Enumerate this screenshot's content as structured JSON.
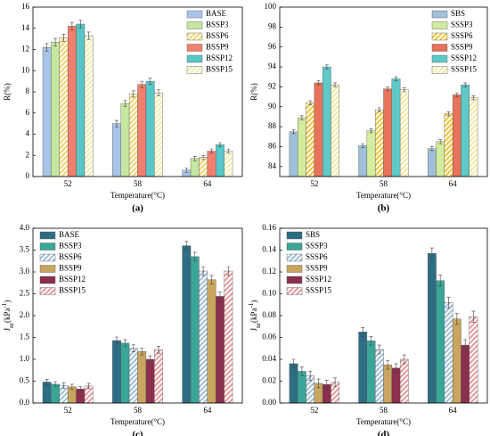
{
  "chart_data": [
    {
      "type": "bar",
      "caption": "(a)",
      "y_label": "R(%)",
      "x_label": "Temperature(°C)",
      "legend": "upper right",
      "categories": [
        "52",
        "58",
        "64"
      ],
      "ylim": [
        0,
        16
      ],
      "yticks": [
        0,
        2,
        4,
        6,
        8,
        10,
        12,
        14,
        16
      ],
      "series": [
        {
          "name": "BASE",
          "color": "#a9c4e6",
          "values": [
            12.2,
            5.0,
            0.6
          ],
          "errors": [
            0.35,
            0.3,
            0.2
          ]
        },
        {
          "name": "BSSP3",
          "color": "#c5e8a0",
          "values": [
            12.7,
            6.9,
            1.7
          ],
          "errors": [
            0.35,
            0.3,
            0.2
          ]
        },
        {
          "name": "BSSP6",
          "color": "#f5d36b",
          "hatch": true,
          "values": [
            13.1,
            7.8,
            1.8
          ],
          "errors": [
            0.35,
            0.3,
            0.2
          ]
        },
        {
          "name": "BSSP9",
          "color": "#f07f6d",
          "values": [
            14.2,
            8.7,
            2.4
          ],
          "errors": [
            0.35,
            0.3,
            0.2
          ]
        },
        {
          "name": "BSSP12",
          "color": "#57c7c7",
          "values": [
            14.4,
            9.0,
            3.0
          ],
          "errors": [
            0.35,
            0.3,
            0.2
          ]
        },
        {
          "name": "BSSP15",
          "color": "#f2ecb0",
          "hatch": true,
          "values": [
            13.3,
            7.9,
            2.4
          ],
          "errors": [
            0.35,
            0.3,
            0.2
          ]
        }
      ]
    },
    {
      "type": "bar",
      "caption": "(b)",
      "y_label": "R(%)",
      "x_label": "Temperature(°C)",
      "legend": "upper right",
      "categories": [
        "52",
        "58",
        "64"
      ],
      "ylim": [
        83,
        100
      ],
      "yticks": [
        84,
        86,
        88,
        90,
        92,
        94,
        96,
        98,
        100
      ],
      "series": [
        {
          "name": "SBS",
          "color": "#9fc0d8",
          "values": [
            87.5,
            86.1,
            85.8
          ],
          "errors": [
            0.2,
            0.2,
            0.2
          ]
        },
        {
          "name": "SSSP3",
          "color": "#d4ec9e",
          "values": [
            88.9,
            87.6,
            86.5
          ],
          "errors": [
            0.2,
            0.2,
            0.2
          ]
        },
        {
          "name": "SSSP6",
          "color": "#f1c232",
          "hatch": true,
          "values": [
            90.4,
            89.7,
            89.3
          ],
          "errors": [
            0.2,
            0.2,
            0.2
          ]
        },
        {
          "name": "SSSP9",
          "color": "#e8735a",
          "values": [
            92.4,
            91.8,
            91.2
          ],
          "errors": [
            0.2,
            0.2,
            0.2
          ]
        },
        {
          "name": "SSSP12",
          "color": "#5ec9c8",
          "values": [
            94.0,
            92.8,
            92.2
          ],
          "errors": [
            0.2,
            0.2,
            0.2
          ]
        },
        {
          "name": "SSSP15",
          "color": "#f3e9a0",
          "hatch": true,
          "values": [
            92.2,
            91.7,
            90.9
          ],
          "errors": [
            0.2,
            0.2,
            0.2
          ]
        }
      ]
    },
    {
      "type": "bar",
      "caption": "(c)",
      "y_label": [
        "J",
        "nr",
        "(kPa",
        "-1",
        ")"
      ],
      "x_label": "Temperature(°C)",
      "legend": "upper left",
      "categories": [
        "52",
        "58",
        "64"
      ],
      "ylim": [
        0,
        4
      ],
      "yticks": [
        {
          "value": 0,
          "label": "0.0"
        },
        0.5,
        {
          "value": 1,
          "label": "1.0"
        },
        1.5,
        {
          "value": 2,
          "label": "2.0"
        },
        2.5,
        {
          "value": 3,
          "label": "3.0"
        },
        3.5,
        {
          "value": 4,
          "label": "4.0"
        }
      ],
      "series": [
        {
          "name": "BASE",
          "color": "#2d6e85",
          "values": [
            0.48,
            1.43,
            3.6
          ],
          "errors": [
            0.06,
            0.08,
            0.1
          ]
        },
        {
          "name": "BSSP3",
          "color": "#3aa698",
          "values": [
            0.43,
            1.37,
            3.35
          ],
          "errors": [
            0.06,
            0.08,
            0.1
          ]
        },
        {
          "name": "BSSP6",
          "color": "#9fbfd6",
          "hatch": true,
          "values": [
            0.4,
            1.25,
            3.02
          ],
          "errors": [
            0.06,
            0.08,
            0.1
          ]
        },
        {
          "name": "BSSP9",
          "color": "#c9a55f",
          "values": [
            0.37,
            1.18,
            2.82
          ],
          "errors": [
            0.06,
            0.08,
            0.1
          ]
        },
        {
          "name": "BSSP12",
          "color": "#8b2f4e",
          "values": [
            0.32,
            1.0,
            2.44
          ],
          "errors": [
            0.06,
            0.08,
            0.1
          ]
        },
        {
          "name": "BSSP15",
          "color": "#e89a9a",
          "hatch": true,
          "values": [
            0.39,
            1.22,
            3.02
          ],
          "errors": [
            0.06,
            0.08,
            0.1
          ]
        }
      ]
    },
    {
      "type": "bar",
      "caption": "(d)",
      "y_label": [
        "J",
        "nr",
        "(kPa",
        "-1",
        ")"
      ],
      "x_label": "Temperature(°C)",
      "legend": "upper left",
      "categories": [
        "52",
        "58",
        "64"
      ],
      "ylim": [
        0,
        0.16
      ],
      "yticks": [
        {
          "value": 0,
          "label": "0.00"
        },
        {
          "value": 0.02,
          "label": "0.02"
        },
        {
          "value": 0.04,
          "label": "0.04"
        },
        {
          "value": 0.06,
          "label": "0.06"
        },
        {
          "value": 0.08,
          "label": "0.08"
        },
        {
          "value": 0.1,
          "label": "0.10"
        },
        {
          "value": 0.12,
          "label": "0.12"
        },
        {
          "value": 0.14,
          "label": "0.14"
        },
        {
          "value": 0.16,
          "label": "0.16"
        }
      ],
      "series": [
        {
          "name": "SBS",
          "color": "#2d6e85",
          "values": [
            0.036,
            0.065,
            0.137
          ],
          "errors": [
            0.004,
            0.004,
            0.005
          ]
        },
        {
          "name": "SSSP3",
          "color": "#3aa698",
          "values": [
            0.029,
            0.057,
            0.112
          ],
          "errors": [
            0.004,
            0.004,
            0.005
          ]
        },
        {
          "name": "SSSP6",
          "color": "#9fbfd6",
          "hatch": true,
          "values": [
            0.025,
            0.049,
            0.092
          ],
          "errors": [
            0.004,
            0.004,
            0.005
          ]
        },
        {
          "name": "SSSP9",
          "color": "#c9a55f",
          "values": [
            0.018,
            0.035,
            0.077
          ],
          "errors": [
            0.004,
            0.004,
            0.005
          ]
        },
        {
          "name": "SSSP12",
          "color": "#8b2f4e",
          "values": [
            0.017,
            0.032,
            0.053
          ],
          "errors": [
            0.004,
            0.004,
            0.005
          ]
        },
        {
          "name": "SSSP15",
          "color": "#e89a9a",
          "hatch": true,
          "values": [
            0.019,
            0.04,
            0.079
          ],
          "errors": [
            0.004,
            0.004,
            0.005
          ]
        }
      ]
    }
  ]
}
